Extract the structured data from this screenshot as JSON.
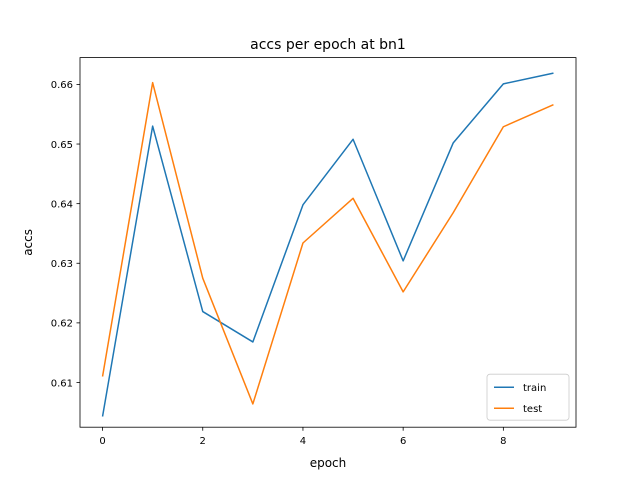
{
  "chart_data": {
    "type": "line",
    "title": "accs per epoch at bn1",
    "xlabel": "epoch",
    "ylabel": "accs",
    "x": [
      0,
      1,
      2,
      3,
      4,
      5,
      6,
      7,
      8,
      9
    ],
    "xlim": [
      -0.45,
      9.45
    ],
    "ylim": [
      0.6025,
      0.6645
    ],
    "xticks": [
      0,
      2,
      4,
      6,
      8
    ],
    "yticks": [
      0.61,
      0.62,
      0.63,
      0.64,
      0.65,
      0.66
    ],
    "xtick_labels": [
      "0",
      "2",
      "4",
      "6",
      "8"
    ],
    "ytick_labels": [
      "0.61",
      "0.62",
      "0.63",
      "0.64",
      "0.65",
      "0.66"
    ],
    "grid": false,
    "legend_position": "lower right",
    "series": [
      {
        "name": "train",
        "color": "#1f77b4",
        "values": [
          0.6043,
          0.653,
          0.6219,
          0.6168,
          0.6398,
          0.6508,
          0.6304,
          0.6502,
          0.6601,
          0.6619
        ]
      },
      {
        "name": "test",
        "color": "#ff7f0e",
        "values": [
          0.611,
          0.6603,
          0.6275,
          0.6064,
          0.6334,
          0.6409,
          0.6252,
          0.6385,
          0.6529,
          0.6566
        ]
      }
    ]
  }
}
